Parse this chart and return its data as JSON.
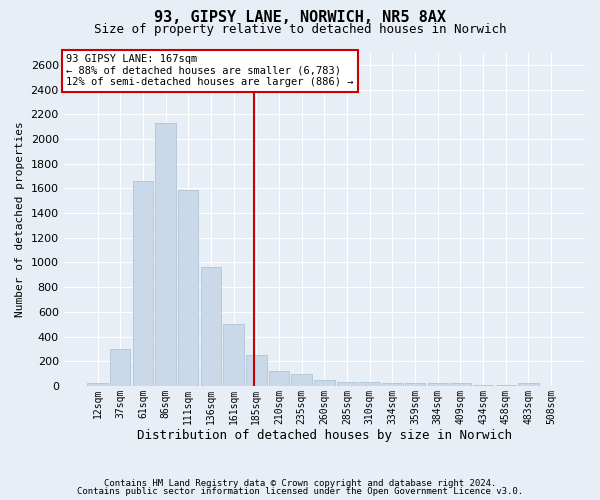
{
  "title1": "93, GIPSY LANE, NORWICH, NR5 8AX",
  "title2": "Size of property relative to detached houses in Norwich",
  "xlabel": "Distribution of detached houses by size in Norwich",
  "ylabel": "Number of detached properties",
  "footer1": "Contains HM Land Registry data © Crown copyright and database right 2024.",
  "footer2": "Contains public sector information licensed under the Open Government Licence v3.0.",
  "categories": [
    "12sqm",
    "37sqm",
    "61sqm",
    "86sqm",
    "111sqm",
    "136sqm",
    "161sqm",
    "185sqm",
    "210sqm",
    "235sqm",
    "260sqm",
    "285sqm",
    "310sqm",
    "334sqm",
    "359sqm",
    "384sqm",
    "409sqm",
    "434sqm",
    "458sqm",
    "483sqm",
    "508sqm"
  ],
  "values": [
    25,
    300,
    1660,
    2130,
    1590,
    960,
    500,
    250,
    120,
    100,
    50,
    35,
    30,
    20,
    20,
    20,
    20,
    5,
    5,
    20,
    0
  ],
  "bar_color": "#c9d9ea",
  "bar_edge_color": "#a8bfd4",
  "vline_index": 6,
  "vline_color": "#cc0000",
  "annotation_line1": "93 GIPSY LANE: 167sqm",
  "annotation_line2": "← 88% of detached houses are smaller (6,783)",
  "annotation_line3": "12% of semi-detached houses are larger (886) →",
  "annotation_box_facecolor": "#ffffff",
  "annotation_box_edgecolor": "#cc0000",
  "ylim": [
    0,
    2700
  ],
  "yticks": [
    0,
    200,
    400,
    600,
    800,
    1000,
    1200,
    1400,
    1600,
    1800,
    2000,
    2200,
    2400,
    2600
  ],
  "bg_color": "#e8eef5",
  "grid_color": "#ffffff",
  "title1_fontsize": 11,
  "title2_fontsize": 9,
  "ylabel_fontsize": 8,
  "xlabel_fontsize": 9,
  "footer_fontsize": 6.5,
  "xtick_fontsize": 7,
  "ytick_fontsize": 8
}
